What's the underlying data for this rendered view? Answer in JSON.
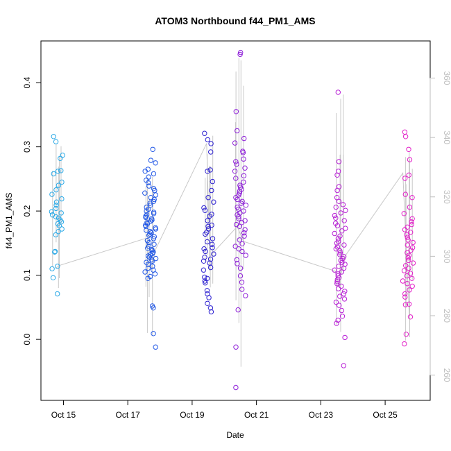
{
  "chart_data": {
    "type": "scatter",
    "title": "ATOM3 Northbound f44_PM1_AMS",
    "xlabel": "Date",
    "ylabel": "f44_PM1_AMS",
    "x_ticks": [
      "Oct 15",
      "Oct 17",
      "Oct 19",
      "Oct 21",
      "Oct 23",
      "Oct 25"
    ],
    "y_ticks": [
      "0.0",
      "0.1",
      "0.2",
      "0.3",
      "0.4"
    ],
    "y2_ticks": [
      "260",
      "280",
      "300",
      "320",
      "340",
      "360"
    ],
    "xlim": [
      14.3,
      26.4
    ],
    "ylim": [
      -0.095,
      0.465
    ],
    "y2lim": [
      251.5,
      372.5
    ],
    "grid": false,
    "colors": {
      "points_start": "#21a6e8",
      "points_mid": "#1f1fd6",
      "points_end": "#e41fc8",
      "secondary_line": "#c8c8c8",
      "right_axis": "#bdbdbd"
    },
    "flights": [
      {
        "x": 14.8,
        "color": "#29a8e6",
        "values": [
          0.316,
          0.308,
          0.287,
          0.282,
          0.263,
          0.262,
          0.258,
          0.245,
          0.24,
          0.233,
          0.226,
          0.219,
          0.214,
          0.209,
          0.204,
          0.199,
          0.197,
          0.194,
          0.191,
          0.189,
          0.186,
          0.183,
          0.18,
          0.177,
          0.172,
          0.168,
          0.163,
          0.137,
          0.136,
          0.114,
          0.11,
          0.096,
          0.071
        ]
      },
      {
        "x": 17.7,
        "color": "#1f56e6",
        "values": [
          0.296,
          0.279,
          0.275,
          0.265,
          0.262,
          0.258,
          0.253,
          0.248,
          0.244,
          0.239,
          0.235,
          0.232,
          0.228,
          0.225,
          0.221,
          0.218,
          0.215,
          0.212,
          0.209,
          0.206,
          0.203,
          0.2,
          0.198,
          0.196,
          0.194,
          0.192,
          0.19,
          0.188,
          0.186,
          0.184,
          0.182,
          0.18,
          0.178,
          0.176,
          0.174,
          0.172,
          0.17,
          0.168,
          0.166,
          0.164,
          0.162,
          0.16,
          0.157,
          0.154,
          0.151,
          0.148,
          0.145,
          0.142,
          0.14,
          0.138,
          0.136,
          0.134,
          0.132,
          0.13,
          0.128,
          0.126,
          0.124,
          0.122,
          0.12,
          0.117,
          0.114,
          0.111,
          0.108,
          0.105,
          0.102,
          0.098,
          0.095,
          0.052,
          0.049,
          0.009,
          -0.012
        ]
      },
      {
        "x": 19.5,
        "color": "#2b1fd0",
        "values": [
          0.321,
          0.311,
          0.305,
          0.292,
          0.264,
          0.262,
          0.246,
          0.232,
          0.221,
          0.214,
          0.205,
          0.201,
          0.195,
          0.192,
          0.185,
          0.178,
          0.176,
          0.172,
          0.167,
          0.164,
          0.157,
          0.152,
          0.148,
          0.143,
          0.141,
          0.137,
          0.133,
          0.128,
          0.125,
          0.122,
          0.119,
          0.112,
          0.108,
          0.097,
          0.095,
          0.091,
          0.088,
          0.076,
          0.071,
          0.065,
          0.056,
          0.049,
          0.043
        ]
      },
      {
        "x": 20.5,
        "color": "#8e1fd8",
        "values": [
          0.447,
          0.444,
          0.355,
          0.325,
          0.313,
          0.306,
          0.293,
          0.291,
          0.281,
          0.277,
          0.273,
          0.267,
          0.262,
          0.255,
          0.251,
          0.245,
          0.24,
          0.237,
          0.234,
          0.231,
          0.228,
          0.225,
          0.221,
          0.218,
          0.215,
          0.212,
          0.209,
          0.206,
          0.203,
          0.2,
          0.197,
          0.194,
          0.191,
          0.188,
          0.185,
          0.182,
          0.179,
          0.176,
          0.171,
          0.166,
          0.161,
          0.155,
          0.149,
          0.145,
          0.141,
          0.137,
          0.131,
          0.124,
          0.118,
          0.111,
          0.099,
          0.089,
          0.078,
          0.068,
          0.046,
          -0.012,
          -0.075
        ]
      },
      {
        "x": 23.6,
        "color": "#b81fd6",
        "values": [
          0.385,
          0.277,
          0.262,
          0.256,
          0.238,
          0.232,
          0.221,
          0.215,
          0.21,
          0.206,
          0.201,
          0.197,
          0.193,
          0.189,
          0.185,
          0.181,
          0.177,
          0.173,
          0.169,
          0.165,
          0.161,
          0.157,
          0.153,
          0.15,
          0.147,
          0.144,
          0.141,
          0.138,
          0.135,
          0.132,
          0.129,
          0.126,
          0.123,
          0.12,
          0.117,
          0.114,
          0.111,
          0.108,
          0.105,
          0.102,
          0.099,
          0.096,
          0.093,
          0.09,
          0.087,
          0.083,
          0.079,
          0.075,
          0.071,
          0.067,
          0.063,
          0.058,
          0.053,
          0.045,
          0.036,
          0.03,
          0.025,
          0.003,
          -0.041
        ]
      },
      {
        "x": 25.7,
        "color": "#e21fc8",
        "values": [
          0.323,
          0.316,
          0.296,
          0.28,
          0.256,
          0.251,
          0.226,
          0.221,
          0.206,
          0.196,
          0.188,
          0.183,
          0.179,
          0.175,
          0.171,
          0.167,
          0.163,
          0.159,
          0.155,
          0.151,
          0.147,
          0.143,
          0.139,
          0.135,
          0.131,
          0.127,
          0.123,
          0.119,
          0.115,
          0.111,
          0.107,
          0.103,
          0.099,
          0.095,
          0.091,
          0.087,
          0.083,
          0.077,
          0.071,
          0.066,
          0.055,
          0.054,
          0.035,
          0.008,
          -0.007
        ]
      }
    ],
    "secondary_trace": {
      "axis": "right",
      "x": [
        14.75,
        14.9,
        17.55,
        17.65,
        17.75,
        17.85,
        19.45,
        19.55,
        20.4,
        20.6,
        23.45,
        23.55,
        23.75,
        25.55,
        25.75
      ],
      "y": [
        296,
        297,
        306,
        300,
        296,
        302,
        338,
        300,
        310,
        305,
        295,
        290,
        300,
        328,
        280
      ]
    }
  }
}
